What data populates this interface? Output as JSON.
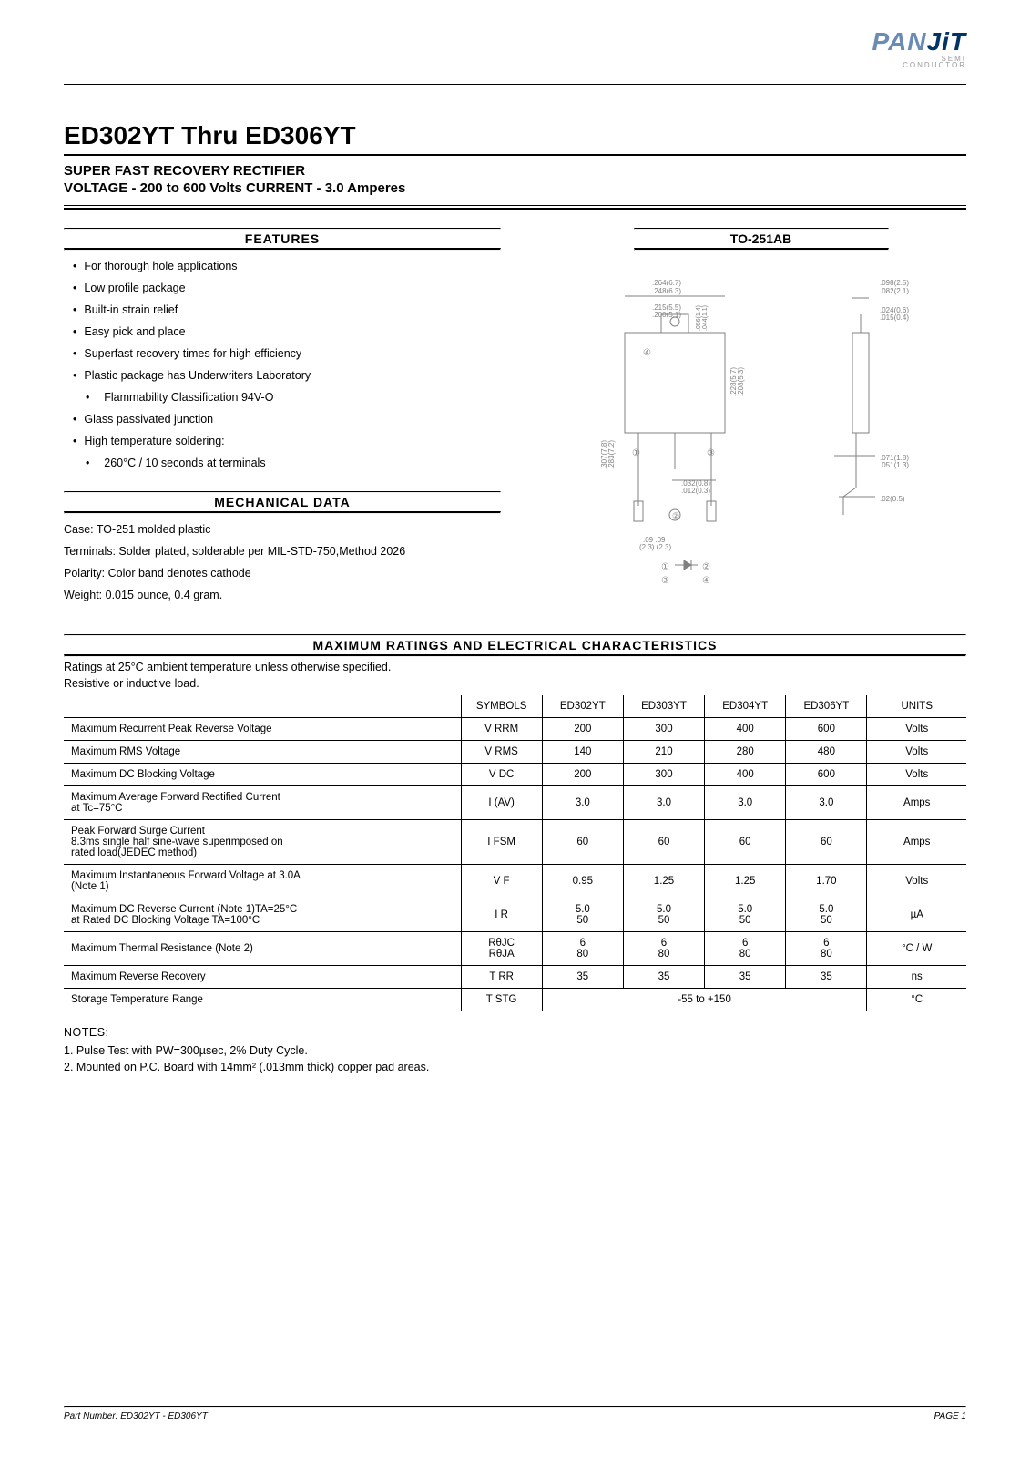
{
  "logo": {
    "text_left": "PAN",
    "text_right": "JiT",
    "color_left": "#6a8bb3",
    "color_right": "#003366",
    "sub1": "SEMI",
    "sub2": "CONDUCTOR"
  },
  "title": "ED302YT Thru ED306YT",
  "subtitle1": "SUPER FAST RECOVERY RECTIFIER",
  "subtitle2": "VOLTAGE - 200 to 600 Volts  CURRENT - 3.0 Amperes",
  "features": {
    "heading": "FEATURES",
    "items": [
      "For thorough hole applications",
      "Low profile package",
      "Built-in strain relief",
      "Easy pick and place",
      "Superfast recovery times for high efficiency",
      "Plastic package has Underwriters Laboratory",
      "Flammability Classification 94V-O",
      "Glass passivated junction",
      "High temperature soldering:",
      "260°C / 10 seconds at terminals"
    ],
    "indent_indices": [
      6,
      9
    ]
  },
  "mechanical": {
    "heading": "MECHANICAL DATA",
    "lines": [
      "Case: TO-251 molded plastic",
      "Terminals: Solder plated, solderable per MIL-STD-750,Method 2026",
      "Polarity: Color band denotes cathode",
      "Weight: 0.015 ounce, 0.4 gram."
    ]
  },
  "package": {
    "label": "TO-251AB",
    "diagram": {
      "front": {
        "body_stroke": "#808080",
        "dim_stroke": "#808080",
        "dims": [
          ".264(6.7)",
          ".248(6.3)",
          ".215(5.5)",
          ".200(5.1)",
          ".228(5.7)",
          ".208(5.3)",
          ".307(7.8)",
          ".283(7.2)",
          ".09  .09",
          "(2.3) (2.3)",
          ".032(0.8)",
          ".012(0.3)"
        ],
        "marks": [
          "①",
          "②",
          "③",
          "④"
        ],
        "lead_labels": [
          ".056(1.4)",
          ".044(1.1)"
        ]
      },
      "side": {
        "dims": [
          ".098(2.5)",
          ".082(2.1)",
          ".024(0.6)",
          ".015(0.4)",
          ".071(1.8)",
          ".051(1.3)",
          ".02(0.5)"
        ]
      },
      "colors": {
        "line": "#808080",
        "text": "#808080",
        "text_fontsize": 6
      }
    }
  },
  "ratings": {
    "heading": "MAXIMUM RATINGS AND ELECTRICAL CHARACTERISTICS",
    "note1": "Ratings at 25°C ambient temperature unless otherwise specified.",
    "note2": "Resistive or inductive load.",
    "columns": [
      "",
      "SYMBOLS",
      "ED302YT",
      "ED303YT",
      "ED304YT",
      "ED306YT",
      "UNITS"
    ],
    "col_widths": [
      "44%",
      "9%",
      "9%",
      "9%",
      "9%",
      "9%",
      "11%"
    ],
    "rows": [
      {
        "param": "Maximum Recurrent Peak Reverse Voltage",
        "symbol": "V RRM",
        "vals": [
          "200",
          "300",
          "400",
          "600"
        ],
        "unit": "Volts"
      },
      {
        "param": "Maximum RMS Voltage",
        "symbol": "V RMS",
        "vals": [
          "140",
          "210",
          "280",
          "480"
        ],
        "unit": "Volts"
      },
      {
        "param": "Maximum DC Blocking Voltage",
        "symbol": "V DC",
        "vals": [
          "200",
          "300",
          "400",
          "600"
        ],
        "unit": "Volts"
      },
      {
        "param": "Maximum Average Forward Rectified Current\nat Tc=75°C",
        "symbol": "I (AV)",
        "vals": [
          "3.0",
          "3.0",
          "3.0",
          "3.0"
        ],
        "unit": "Amps"
      },
      {
        "param": "Peak Forward Surge Current\n8.3ms single half sine-wave superimposed on\nrated load(JEDEC method)",
        "symbol": "I FSM",
        "vals": [
          "60",
          "60",
          "60",
          "60"
        ],
        "unit": "Amps"
      },
      {
        "param": "Maximum Instantaneous Forward Voltage at 3.0A\n(Note 1)",
        "symbol": "V F",
        "vals": [
          "0.95",
          "1.25",
          "1.25",
          "1.70"
        ],
        "unit": "Volts"
      },
      {
        "param": "Maximum DC Reverse Current (Note 1)TA=25°C\nat Rated DC Blocking Voltage          TA=100°C",
        "symbol": "I R",
        "vals": [
          "5.0\n50",
          "5.0\n50",
          "5.0\n50",
          "5.0\n50"
        ],
        "unit": "µA"
      },
      {
        "param": "Maximum Thermal Resistance (Note 2)",
        "symbol": "RθJC\nRθJA",
        "vals": [
          "6\n80",
          "6\n80",
          "6\n80",
          "6\n80"
        ],
        "unit": "°C / W"
      },
      {
        "param": "Maximum Reverse Recovery",
        "symbol": "T RR",
        "vals": [
          "35",
          "35",
          "35",
          "35"
        ],
        "unit": "ns"
      },
      {
        "param": "Storage Temperature Range",
        "symbol": "T STG",
        "span_val": "-55 to +150",
        "unit": "°C"
      }
    ]
  },
  "notes": {
    "heading": "NOTES:",
    "items": [
      "1. Pulse Test with PW=300µsec, 2% Duty Cycle.",
      "2. Mounted on P.C. Board with 14mm² (.013mm thick) copper pad areas."
    ]
  },
  "footer": {
    "left": "Part Number: ED302YT - ED306YT",
    "right": "PAGE 1"
  },
  "style": {
    "page_bg": "#ffffff",
    "text_color": "#000000",
    "body_fontsize": 13,
    "h1_fontsize": 28,
    "h2_fontsize": 15,
    "table_fontsize": 11.5,
    "footer_fontsize": 10,
    "rule_thick": 2,
    "rule_thin": 1
  }
}
